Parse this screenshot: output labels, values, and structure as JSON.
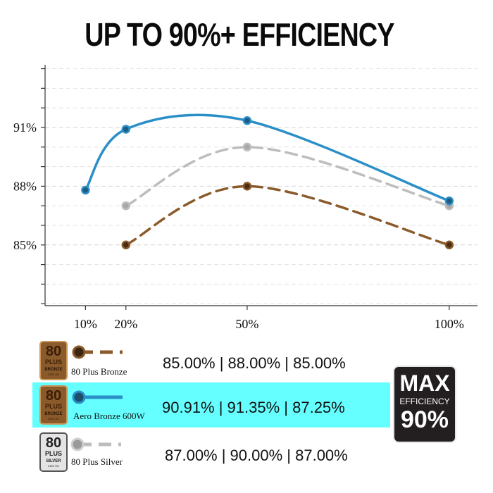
{
  "title": "UP TO 90%+ EFFICIENCY",
  "chart_data": {
    "type": "line",
    "x": [
      10,
      20,
      50,
      100
    ],
    "x_tick_labels": [
      "10%",
      "20%",
      "50%",
      "100%"
    ],
    "y_tick_labels": [
      "91%",
      "88%",
      "85%"
    ],
    "y_ticks": [
      91,
      88,
      85
    ],
    "ylim": [
      81.9,
      94.2
    ],
    "xlim": [
      0,
      107
    ],
    "grid": true,
    "series": [
      {
        "name": "Aero Bronze 600W",
        "x": [
          10,
          20,
          50,
          100
        ],
        "values": [
          87.8,
          90.91,
          91.35,
          87.25
        ],
        "color": "#2b8fc7",
        "dash": "solid"
      },
      {
        "name": "80 Plus Silver",
        "x": [
          20,
          50,
          100
        ],
        "values": [
          87.0,
          90.0,
          87.0
        ],
        "color": "#bdbdbd",
        "dash": "dashed"
      },
      {
        "name": "80 Plus Bronze",
        "x": [
          20,
          50,
          100
        ],
        "values": [
          85.0,
          88.0,
          85.0
        ],
        "color": "#8b5a2b",
        "dash": "dashed"
      }
    ]
  },
  "legend": {
    "bronze": {
      "name": "80 Plus Bronze",
      "values": "85.00% | 88.00% | 85.00%",
      "badge": {
        "number": "80",
        "plus": "PLUS",
        "tier": "BRONZE",
        "footer": "230V EU"
      },
      "color": "#8b5a2b"
    },
    "aero": {
      "name": "Aero Bronze 600W",
      "values": "90.91% | 91.35% | 87.25%",
      "badge": {
        "number": "80",
        "plus": "PLUS",
        "tier": "BRONZE",
        "footer": "230V EU"
      },
      "color": "#2b8fc7",
      "highlight_color": "#66ffff"
    },
    "silver": {
      "name": "80 Plus Silver",
      "values": "87.00% | 90.00% | 87.00%",
      "badge": {
        "number": "80",
        "plus": "PLUS",
        "tier": "SILVER",
        "footer": "230V EU"
      },
      "color": "#bdbdbd"
    }
  },
  "max_badge": {
    "word": "MAX",
    "sub": "EFFICIENCY",
    "value": "90%"
  }
}
